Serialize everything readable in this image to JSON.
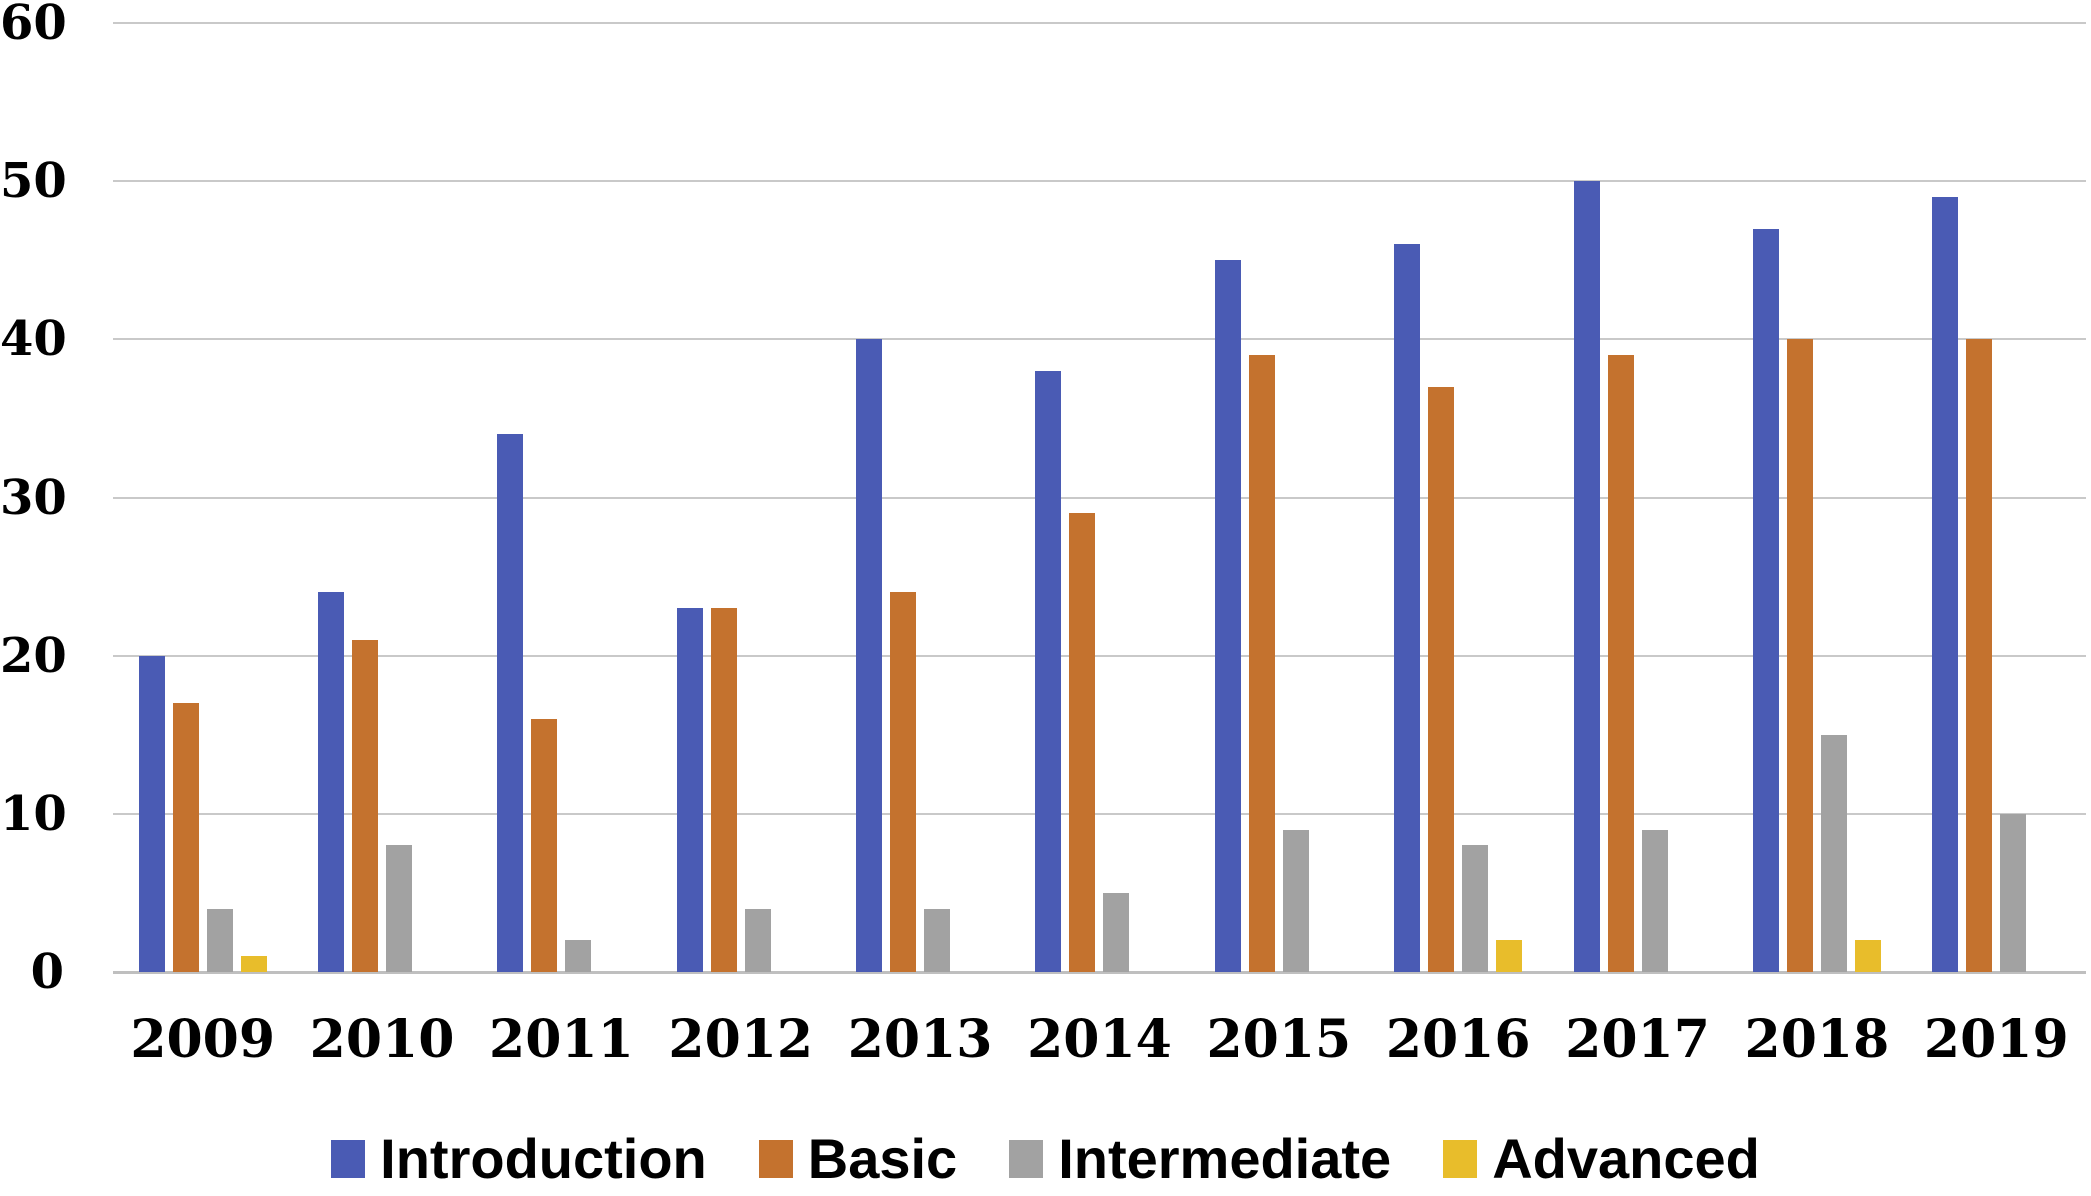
{
  "chart_data": {
    "type": "bar",
    "categories": [
      "2009",
      "2010",
      "2011",
      "2012",
      "2013",
      "2014",
      "2015",
      "2016",
      "2017",
      "2018",
      "2019"
    ],
    "series": [
      {
        "name": "Introduction",
        "color": "#4A5BB4",
        "values": [
          20,
          24,
          34,
          23,
          40,
          38,
          45,
          46,
          50,
          47,
          49
        ]
      },
      {
        "name": "Basic",
        "color": "#C4722E",
        "values": [
          17,
          21,
          16,
          23,
          24,
          29,
          39,
          37,
          39,
          40,
          40
        ]
      },
      {
        "name": "Intermediate",
        "color": "#A2A2A2",
        "values": [
          4,
          8,
          2,
          4,
          4,
          5,
          9,
          8,
          9,
          15,
          10
        ]
      },
      {
        "name": "Advanced",
        "color": "#E8BD2B",
        "values": [
          1,
          0,
          0,
          0,
          0,
          0,
          0,
          2,
          0,
          2,
          0
        ]
      }
    ],
    "y_axis": {
      "min": 0,
      "max": 60,
      "tick_interval": 10,
      "ticks": [
        0,
        10,
        20,
        30,
        40,
        50,
        60
      ]
    },
    "grid": "horizontal",
    "legend_position": "bottom"
  },
  "colors": {
    "background": "#FFFFFF",
    "gridline": "#C9C9C9",
    "axis_line": "#BFBFBF",
    "tick_text": "#000000",
    "legend_text": "#000000"
  }
}
